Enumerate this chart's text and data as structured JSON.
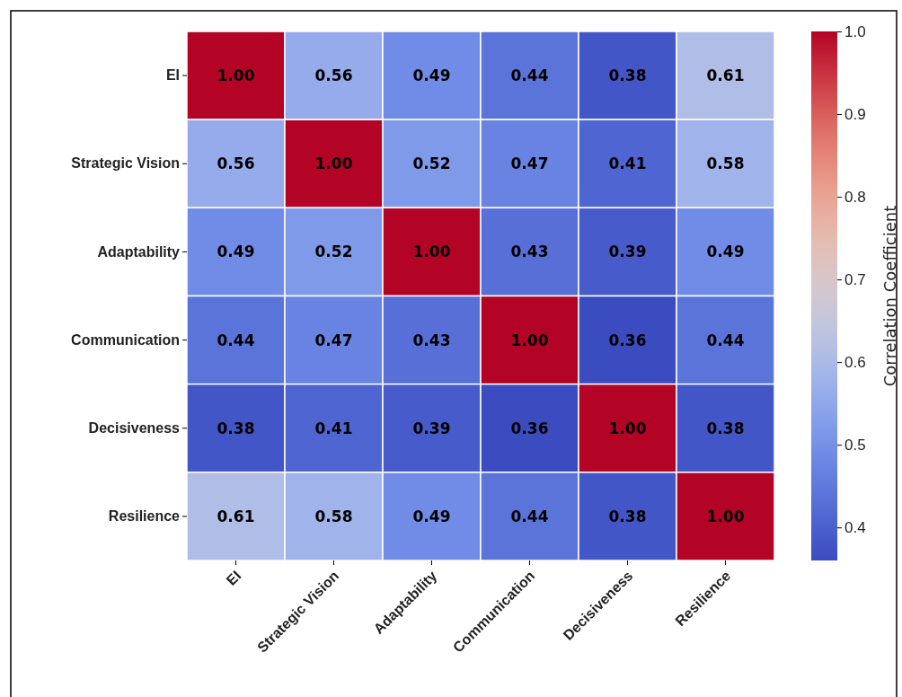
{
  "chart_data": {
    "type": "heatmap",
    "clabel": "Correlation Coefficient",
    "categories": [
      "EI",
      "Strategic Vision",
      "Adaptability",
      "Communication",
      "Decisiveness",
      "Resilience"
    ],
    "y_categories": [
      "EI",
      "Strategic Vision",
      "Adaptability",
      "Communication",
      "Decisiveness",
      "Resilience"
    ],
    "cells": [
      [
        1.0,
        0.56,
        0.49,
        0.44,
        0.38,
        0.61
      ],
      [
        0.56,
        1.0,
        0.52,
        0.47,
        0.41,
        0.58
      ],
      [
        0.49,
        0.52,
        1.0,
        0.43,
        0.39,
        0.49
      ],
      [
        0.44,
        0.47,
        0.43,
        1.0,
        0.36,
        0.44
      ],
      [
        0.38,
        0.41,
        0.39,
        0.36,
        1.0,
        0.38
      ],
      [
        0.61,
        0.58,
        0.49,
        0.44,
        0.38,
        1.0
      ]
    ],
    "cell_labels": [
      [
        "1.00",
        "0.56",
        "0.49",
        "0.44",
        "0.38",
        "0.61"
      ],
      [
        "0.56",
        "1.00",
        "0.52",
        "0.47",
        "0.41",
        "0.58"
      ],
      [
        "0.49",
        "0.52",
        "1.00",
        "0.43",
        "0.39",
        "0.49"
      ],
      [
        "0.44",
        "0.47",
        "0.43",
        "1.00",
        "0.36",
        "0.44"
      ],
      [
        "0.38",
        "0.41",
        "0.39",
        "0.36",
        "1.00",
        "0.38"
      ],
      [
        "0.61",
        "0.58",
        "0.49",
        "0.44",
        "0.38",
        "1.00"
      ]
    ],
    "clim": [
      0.36,
      1.0
    ],
    "cticks": [
      {
        "value": 0.4,
        "label": "0.4"
      },
      {
        "value": 0.5,
        "label": "0.5"
      },
      {
        "value": 0.6,
        "label": "0.6"
      },
      {
        "value": 0.7,
        "label": "0.7"
      },
      {
        "value": 0.8,
        "label": "0.8"
      },
      {
        "value": 0.9,
        "label": "0.9"
      },
      {
        "value": 1.0,
        "label": "1.0"
      }
    ]
  }
}
